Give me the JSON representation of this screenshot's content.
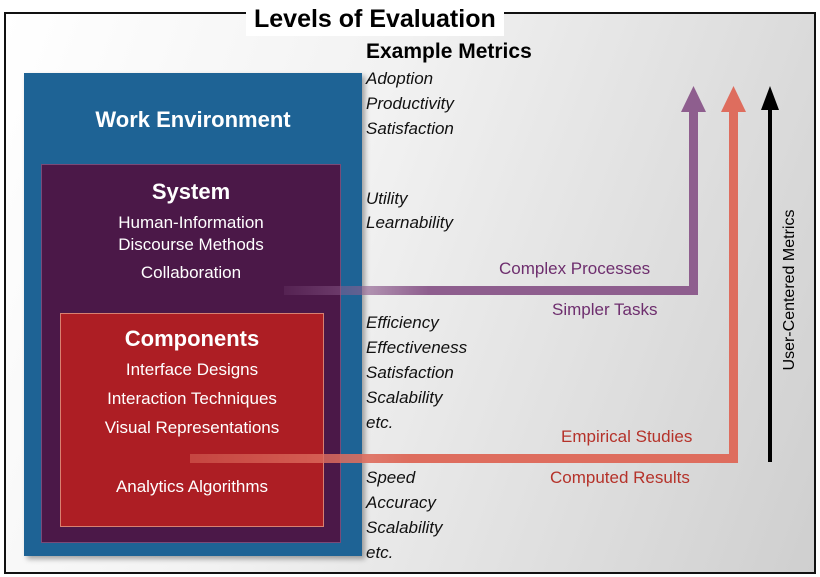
{
  "title": "Levels of Evaluation",
  "levels": {
    "work_environment": {
      "label": "Work Environment"
    },
    "system": {
      "label": "System",
      "items": [
        "Human-Information",
        "Discourse Methods",
        "Collaboration"
      ]
    },
    "components": {
      "label": "Components",
      "items": [
        "Interface Designs",
        "Interaction Techniques",
        "Visual Representations",
        "Analytics Algorithms"
      ]
    }
  },
  "metrics": {
    "heading": "Example Metrics",
    "work_environment": [
      "Adoption",
      "Productivity",
      "Satisfaction"
    ],
    "system": [
      "Utility",
      "Learnability"
    ],
    "components": [
      "Efficiency",
      "Effectiveness",
      "Satisfaction",
      "Scalability",
      "etc."
    ],
    "algorithms": [
      "Speed",
      "Accuracy",
      "Scalability",
      "etc."
    ]
  },
  "arrows": {
    "system_top": "Complex Processes",
    "system_bottom": "Simpler Tasks",
    "components_top": "Empirical Studies",
    "components_bottom": "Computed Results",
    "vertical": "User-Centered Metrics"
  },
  "colors": {
    "work_environment": "#1e6395",
    "system": "#4b1848",
    "components": "#ad1e24",
    "system_arrow": "#8e5e8e",
    "components_arrow": "#de6d5e",
    "metrics_arrow": "#000000"
  }
}
